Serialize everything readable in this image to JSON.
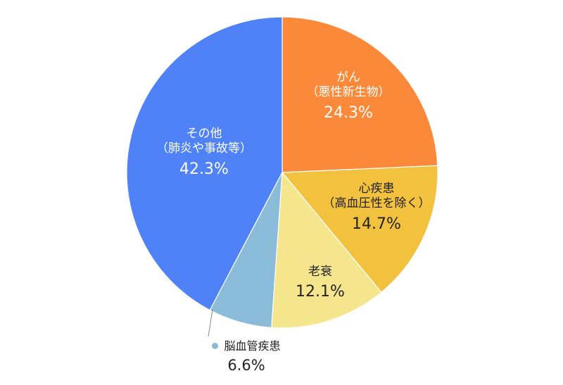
{
  "chart_data": {
    "type": "pie",
    "slices": [
      {
        "name_line1": "がん",
        "name_line2": "（悪性新生物）",
        "value": 24.3,
        "label": "24.3%",
        "color": "#FA8A3A"
      },
      {
        "name_line1": "心疾患",
        "name_line2": "（高血圧性を除く）",
        "value": 14.7,
        "label": "14.7%",
        "color": "#F2C23F"
      },
      {
        "name_line1": "老衰",
        "name_line2": "",
        "value": 12.1,
        "label": "12.1%",
        "color": "#F5E68E"
      },
      {
        "name_line1": "脳血管疾患",
        "name_line2": "",
        "value": 6.6,
        "label": "6.6%",
        "color": "#8ABCD9"
      },
      {
        "name_line1": "その他",
        "name_line2": "（肺炎や事故等）",
        "value": 42.3,
        "label": "42.3%",
        "color": "#4E82F6"
      }
    ],
    "start_angle_deg": 0,
    "direction": "clockwise",
    "legend": "none"
  }
}
